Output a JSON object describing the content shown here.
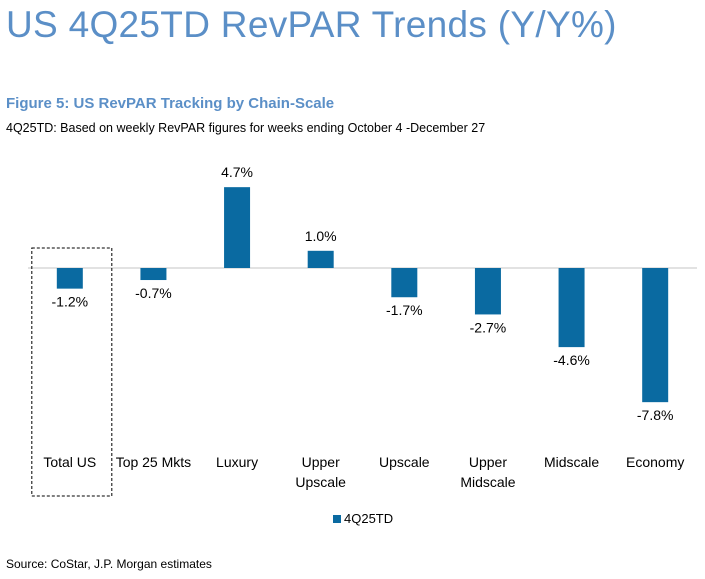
{
  "title": "US 4Q25TD RevPAR Trends (Y/Y%)",
  "figure": {
    "title": "Figure 5: US RevPAR Tracking by Chain-Scale",
    "subtitle": "4Q25TD: Based on weekly RevPAR figures for weeks ending October 4 -December 27"
  },
  "source": "Source: CoStar, J.P. Morgan estimates",
  "colors": {
    "bar": "#0a6aa1",
    "title": "#5b8fc7",
    "axis": "#d9d9d9"
  },
  "chart_data": {
    "type": "bar",
    "title": "Figure 5: US RevPAR Tracking by Chain-Scale",
    "xlabel": "",
    "ylabel": "",
    "ylim": [
      -8.5,
      5.5
    ],
    "grid": false,
    "legend": "bottom",
    "categories": [
      [
        "Total US"
      ],
      [
        "Top 25 Mkts"
      ],
      [
        "Luxury"
      ],
      [
        "Upper",
        "Upscale"
      ],
      [
        "Upscale"
      ],
      [
        "Upper",
        "Midscale"
      ],
      [
        "Midscale"
      ],
      [
        "Economy"
      ]
    ],
    "series": [
      {
        "name": "4Q25TD",
        "values": [
          -1.2,
          -0.7,
          4.7,
          1.0,
          -1.7,
          -2.7,
          -4.6,
          -7.8
        ],
        "labels": [
          "-1.2%",
          "-0.7%",
          "4.7%",
          "1.0%",
          "-1.7%",
          "-2.7%",
          "-4.6%",
          "-7.8%"
        ]
      }
    ],
    "highlighted_category": "Total US"
  }
}
